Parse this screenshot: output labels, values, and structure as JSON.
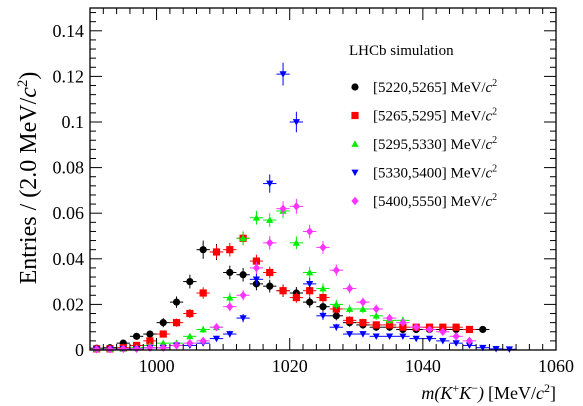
{
  "chart_data": {
    "type": "scatter",
    "title": "",
    "annotation": "LHCb simulation",
    "xlabel": {
      "m": "m",
      "open": "(",
      "k1": "K",
      "sup1": "+",
      "k2": "K",
      "sup2": "−",
      "close": ")",
      "unit": "[MeV/",
      "c": "c",
      "pow": "2",
      "end": "]"
    },
    "ylabel": {
      "text": "Entries / (2.0 MeV/",
      "c": "c",
      "pow": "2",
      "end": ")"
    },
    "xlim": [
      990,
      1060
    ],
    "ylim": [
      0,
      0.15
    ],
    "xticks": [
      1000,
      1020,
      1040,
      1060
    ],
    "yticks": [
      0,
      0.02,
      0.04,
      0.06,
      0.08,
      0.1,
      0.12,
      0.14
    ],
    "ytick_labels": [
      "0",
      "0.02",
      "0.04",
      "0.06",
      "0.08",
      "0.1",
      "0.12",
      "0.14"
    ],
    "legend_position": "top-right",
    "series": [
      {
        "name": "[5220,5265] MeV/",
        "color": "#000000",
        "marker": "circle",
        "x": [
          991,
          993,
          995,
          997,
          999,
          1001,
          1003,
          1005,
          1007,
          1009,
          1011,
          1013,
          1015,
          1017,
          1019,
          1021,
          1023,
          1025,
          1027,
          1029,
          1031,
          1033,
          1035,
          1037,
          1039,
          1041,
          1043,
          1045,
          1047,
          1049
        ],
        "y": [
          0.0008,
          0.001,
          0.003,
          0.006,
          0.007,
          0.012,
          0.021,
          0.03,
          0.044,
          0.043,
          0.034,
          0.033,
          0.029,
          0.028,
          0.026,
          0.025,
          0.021,
          0.019,
          0.015,
          0.012,
          0.011,
          0.01,
          0.01,
          0.009,
          0.009,
          0.009,
          0.009,
          0.009,
          0.009,
          0.009
        ],
        "yerr": [
          0.0008,
          0.001,
          0.0012,
          0.0015,
          0.0016,
          0.002,
          0.0025,
          0.003,
          0.004,
          0.0035,
          0.003,
          0.003,
          0.0028,
          0.0028,
          0.0027,
          0.0026,
          0.0024,
          0.0022,
          0.002,
          0.0018,
          0.0017,
          0.0016,
          0.0016,
          0.0015,
          0.0015,
          0.0015,
          0.0015,
          0.0015,
          0.0015,
          0.0015
        ]
      },
      {
        "name": "[5265,5295] MeV/",
        "color": "#ff0000",
        "marker": "square",
        "x": [
          991,
          993,
          995,
          997,
          999,
          1001,
          1003,
          1005,
          1007,
          1009,
          1011,
          1013,
          1015,
          1017,
          1019,
          1021,
          1023,
          1025,
          1027,
          1029,
          1031,
          1033,
          1035,
          1037,
          1039,
          1041,
          1043,
          1045,
          1047
        ],
        "y": [
          0.0005,
          0.0005,
          0.001,
          0.002,
          0.004,
          0.007,
          0.012,
          0.016,
          0.025,
          0.043,
          0.044,
          0.049,
          0.039,
          0.034,
          0.026,
          0.023,
          0.026,
          0.023,
          0.018,
          0.013,
          0.012,
          0.011,
          0.011,
          0.01,
          0.01,
          0.01,
          0.01,
          0.01,
          0.009
        ],
        "yerr": [
          0.0005,
          0.0005,
          0.0008,
          0.001,
          0.0012,
          0.0015,
          0.0018,
          0.002,
          0.0025,
          0.003,
          0.003,
          0.003,
          0.0028,
          0.0026,
          0.0024,
          0.0023,
          0.0024,
          0.0023,
          0.002,
          0.0018,
          0.0017,
          0.0016,
          0.0016,
          0.0015,
          0.0015,
          0.0015,
          0.0015,
          0.0015,
          0.0015
        ]
      },
      {
        "name": "[5295,5330] MeV/",
        "color": "#00ee00",
        "marker": "triangle-up",
        "x": [
          991,
          993,
          995,
          997,
          999,
          1001,
          1003,
          1005,
          1007,
          1009,
          1011,
          1013,
          1015,
          1017,
          1019,
          1021,
          1023,
          1025,
          1027,
          1029,
          1031,
          1033,
          1035,
          1037
        ],
        "y": [
          0.0005,
          0.0005,
          0.0005,
          0.001,
          0.002,
          0.003,
          0.003,
          0.006,
          0.009,
          0.01,
          0.023,
          0.049,
          0.058,
          0.057,
          0.061,
          0.047,
          0.034,
          0.027,
          0.02,
          0.018,
          0.018,
          0.015,
          0.013,
          0.013
        ],
        "yerr": [
          0.0004,
          0.0004,
          0.0004,
          0.0006,
          0.0008,
          0.001,
          0.001,
          0.0012,
          0.0015,
          0.0016,
          0.0022,
          0.003,
          0.003,
          0.003,
          0.0032,
          0.0028,
          0.0025,
          0.0022,
          0.002,
          0.0019,
          0.0019,
          0.0017,
          0.0016,
          0.0016
        ]
      },
      {
        "name": "[5330,5400] MeV/",
        "color": "#0000ff",
        "marker": "triangle-down",
        "x": [
          991,
          993,
          995,
          997,
          999,
          1001,
          1003,
          1005,
          1007,
          1009,
          1011,
          1013,
          1015,
          1017,
          1019,
          1021,
          1023,
          1025,
          1027,
          1029,
          1031,
          1033,
          1035,
          1037,
          1039,
          1041,
          1043,
          1045,
          1047,
          1049,
          1051,
          1053
        ],
        "y": [
          0.0003,
          0.0003,
          0.0005,
          0.0005,
          0.001,
          0.001,
          0.002,
          0.002,
          0.003,
          0.005,
          0.007,
          0.014,
          0.031,
          0.073,
          0.121,
          0.1,
          0.029,
          0.015,
          0.01,
          0.007,
          0.007,
          0.006,
          0.006,
          0.006,
          0.005,
          0.005,
          0.004,
          0.003,
          0.002,
          0.001,
          0.0005,
          0.0003
        ],
        "yerr": [
          0.0003,
          0.0003,
          0.0004,
          0.0004,
          0.0006,
          0.0006,
          0.0008,
          0.0008,
          0.001,
          0.0012,
          0.0014,
          0.0018,
          0.0026,
          0.004,
          0.005,
          0.0045,
          0.0026,
          0.0018,
          0.0015,
          0.0013,
          0.0013,
          0.0012,
          0.0012,
          0.0012,
          0.0011,
          0.0011,
          0.001,
          0.0009,
          0.0008,
          0.0006,
          0.0005,
          0.0003
        ]
      },
      {
        "name": "[5400,5550] MeV/",
        "color": "#ff33ff",
        "marker": "diamond",
        "x": [
          991,
          993,
          995,
          997,
          999,
          1001,
          1003,
          1005,
          1007,
          1009,
          1011,
          1013,
          1015,
          1017,
          1019,
          1021,
          1023,
          1025,
          1027,
          1029,
          1031,
          1033,
          1035,
          1037,
          1039,
          1041,
          1043,
          1045,
          1047
        ],
        "y": [
          0.0003,
          0.0003,
          0.0005,
          0.0005,
          0.001,
          0.001,
          0.002,
          0.003,
          0.004,
          0.01,
          0.019,
          0.024,
          0.036,
          0.047,
          0.062,
          0.063,
          0.052,
          0.045,
          0.035,
          0.027,
          0.021,
          0.018,
          0.014,
          0.012,
          0.01,
          0.009,
          0.008,
          0.006,
          0.004
        ],
        "yerr": [
          0.0003,
          0.0003,
          0.0004,
          0.0004,
          0.0006,
          0.0006,
          0.0008,
          0.001,
          0.0012,
          0.0016,
          0.002,
          0.0022,
          0.0026,
          0.003,
          0.0033,
          0.0033,
          0.003,
          0.0028,
          0.0025,
          0.0022,
          0.002,
          0.0019,
          0.0017,
          0.0016,
          0.0015,
          0.0014,
          0.0013,
          0.0012,
          0.001
        ]
      }
    ]
  }
}
